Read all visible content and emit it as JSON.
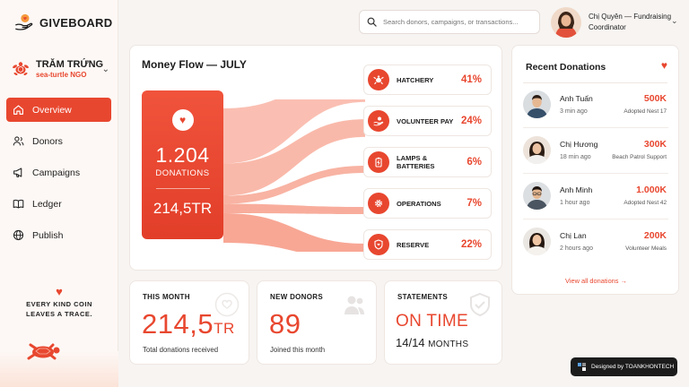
{
  "brand": {
    "name": "GIVEBOARD"
  },
  "org": {
    "name": "TRĂM TRỨNG",
    "sub": "sea-turtle NGO"
  },
  "nav": [
    {
      "label": "Overview",
      "icon": "home-icon",
      "active": true
    },
    {
      "label": "Donors",
      "icon": "users-icon"
    },
    {
      "label": "Campaigns",
      "icon": "megaphone-icon"
    },
    {
      "label": "Ledger",
      "icon": "book-icon"
    },
    {
      "label": "Publish",
      "icon": "globe-icon"
    }
  ],
  "tagline": {
    "line1": "EVERY KIND COIN",
    "line2": "LEAVES A TRACE."
  },
  "search": {
    "placeholder": "Search donors, campaigns, or transactions..."
  },
  "user": {
    "name": "Chị Quyên — Fundraising Coordinator"
  },
  "flow": {
    "title": "Money Flow — JULY",
    "donations_count": "1.204",
    "donations_label": "DONATIONS",
    "amount": "214,5TR",
    "categories": [
      {
        "label": "HATCHERY",
        "pct": "41%",
        "value": 41,
        "icon": "turtle-icon"
      },
      {
        "label": "VOLUNTEER PAY",
        "pct": "24%",
        "value": 24,
        "icon": "hand-coin-icon"
      },
      {
        "label": "LAMPS & BATTERIES",
        "pct": "6%",
        "value": 6,
        "icon": "battery-icon"
      },
      {
        "label": "OPERATIONS",
        "pct": "7%",
        "value": 7,
        "icon": "gear-icon"
      },
      {
        "label": "RESERVE",
        "pct": "22%",
        "value": 22,
        "icon": "shield-icon"
      }
    ]
  },
  "recent": {
    "title": "Recent Donations",
    "items": [
      {
        "name": "Anh Tuấn",
        "time": "3 min ago",
        "amount": "500K",
        "note": "Adopted Nest 17"
      },
      {
        "name": "Chị Hương",
        "time": "18 min ago",
        "amount": "300K",
        "note": "Beach Patrol Support"
      },
      {
        "name": "Anh Minh",
        "time": "1 hour ago",
        "amount": "1.000K",
        "note": "Adopted Nest 42"
      },
      {
        "name": "Chị Lan",
        "time": "2 hours ago",
        "amount": "200K",
        "note": "Volunteer Meals"
      }
    ],
    "view_all": "View all donations →"
  },
  "stats": {
    "month": {
      "label": "THIS MONTH",
      "value": "214,5",
      "unit": "TR",
      "sub": "Total donations received"
    },
    "donors": {
      "label": "NEW DONORS",
      "value": "89",
      "sub": "Joined this month"
    },
    "statements": {
      "label": "STATEMENTS",
      "status": "ON TIME",
      "count": "14/14",
      "unit": "MONTHS"
    }
  },
  "credit": {
    "text": "Designed by TOANKHONTECH"
  },
  "colors": {
    "accent": "#e8472f",
    "flow": "#f58a72"
  }
}
